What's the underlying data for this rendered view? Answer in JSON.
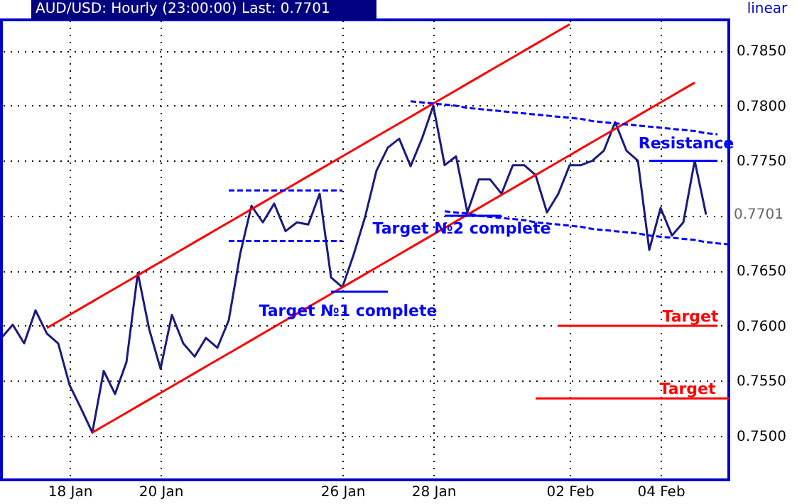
{
  "chart_data": {
    "type": "line",
    "title": "AUD/USD: Hourly (23:00:00) Last: 0.7701",
    "categories": [
      null,
      null,
      null,
      null,
      null,
      null,
      "18 Jan",
      null,
      null,
      null,
      null,
      null,
      null,
      null,
      "20 Jan",
      null,
      null,
      null,
      null,
      null,
      null,
      null,
      null,
      null,
      null,
      null,
      null,
      null,
      null,
      null,
      "26 Jan",
      null,
      null,
      null,
      null,
      null,
      null,
      null,
      "28 Jan",
      null,
      null,
      null,
      null,
      null,
      null,
      null,
      null,
      null,
      null,
      null,
      "02 Feb",
      null,
      null,
      null,
      null,
      null,
      null,
      null,
      "04 Feb",
      null,
      null,
      null,
      null,
      null,
      null
    ],
    "series": [
      {
        "color": "#1a1a80",
        "values": [
          0.7589,
          0.7601,
          0.7584,
          0.7614,
          0.7593,
          0.7584,
          0.7546,
          0.7525,
          0.7503,
          0.7559,
          0.7538,
          0.7567,
          0.7648,
          0.7597,
          0.7561,
          0.761,
          0.7584,
          0.7572,
          0.7589,
          0.758,
          0.7605,
          0.7665,
          0.7709,
          0.7694,
          0.7711,
          0.7686,
          0.7694,
          0.7692,
          0.772,
          0.7644,
          0.7635,
          0.7665,
          0.7699,
          0.7741,
          0.7762,
          0.777,
          0.7745,
          0.777,
          0.78,
          0.7746,
          0.7754,
          0.7703,
          0.7733,
          0.7733,
          0.772,
          0.7746,
          0.7746,
          0.7737,
          0.7703,
          0.772,
          0.7746,
          0.7746,
          0.775,
          0.7759,
          0.7785,
          0.7759,
          0.775,
          0.7669,
          0.7707,
          0.7682,
          0.7694,
          0.775,
          0.7701,
          null,
          null
        ]
      },
      {
        "type": "line",
        "color": "#ff0000",
        "values": [
          null,
          null,
          null,
          null,
          0.7598,
          0.7604,
          0.761,
          0.7616,
          0.7622,
          0.7628,
          0.7634,
          0.764,
          0.7646,
          0.7652,
          0.7658,
          0.7664,
          0.767,
          0.7676,
          0.7682,
          0.7688,
          0.7694,
          0.77,
          0.7706,
          0.7712,
          0.7718,
          0.7724,
          0.773,
          0.7736,
          0.7742,
          0.7748,
          0.7754,
          0.776,
          0.7766,
          0.7772,
          0.7778,
          0.7784,
          0.779,
          0.7796,
          0.7802,
          0.7808,
          0.7814,
          0.782,
          0.7826,
          0.7832,
          0.7838,
          0.7844,
          0.785,
          0.7856,
          0.7862,
          0.7868,
          0.7874,
          null,
          null,
          null,
          null,
          null,
          null,
          null,
          null,
          null,
          null,
          null,
          null,
          null,
          null
        ]
      },
      {
        "type": "line",
        "color": "#ff0000",
        "values": [
          null,
          null,
          null,
          null,
          null,
          null,
          null,
          null,
          0.7503,
          0.7509,
          0.7515,
          0.7521,
          0.7527,
          0.7533,
          0.7539,
          0.7545,
          0.7551,
          0.7557,
          0.7563,
          0.7569,
          0.7575,
          0.7581,
          0.7587,
          0.7593,
          0.7599,
          0.7605,
          0.7611,
          0.7617,
          0.7623,
          0.7629,
          0.7635,
          0.7641,
          0.7647,
          0.7653,
          0.7659,
          0.7665,
          0.7671,
          0.7677,
          0.7683,
          0.7689,
          0.7695,
          0.7701,
          0.7707,
          0.7713,
          0.7719,
          0.7725,
          0.7731,
          0.7737,
          0.7743,
          0.7749,
          0.7755,
          0.7761,
          0.7767,
          0.7773,
          0.7779,
          0.7785,
          0.7791,
          0.7797,
          0.7803,
          0.7809,
          0.7815,
          0.7821,
          null,
          null,
          null
        ]
      },
      {
        "type": "line",
        "color": "#0000ff",
        "line_style": "dashed",
        "values": [
          null,
          null,
          null,
          null,
          null,
          null,
          null,
          null,
          null,
          null,
          null,
          null,
          null,
          null,
          null,
          null,
          null,
          null,
          null,
          null,
          null,
          null,
          null,
          null,
          null,
          null,
          null,
          null,
          null,
          null,
          null,
          null,
          null,
          null,
          null,
          null,
          0.7804,
          0.7803,
          0.7802,
          0.7801,
          0.78,
          0.7798,
          0.7797,
          0.7796,
          0.7795,
          0.7794,
          0.7793,
          0.7792,
          0.7791,
          0.779,
          0.7789,
          0.7788,
          0.7786,
          0.7785,
          0.7784,
          0.7783,
          0.7782,
          0.7781,
          0.778,
          0.7779,
          0.7778,
          0.7777,
          0.7775,
          0.7774,
          null
        ]
      },
      {
        "type": "line",
        "color": "#0000ff",
        "line_style": "dashed",
        "values": [
          null,
          null,
          null,
          null,
          null,
          null,
          null,
          null,
          null,
          null,
          null,
          null,
          null,
          null,
          null,
          null,
          null,
          null,
          null,
          null,
          null,
          null,
          null,
          null,
          null,
          null,
          null,
          null,
          null,
          null,
          null,
          null,
          null,
          null,
          null,
          null,
          null,
          null,
          null,
          0.7704,
          0.7703,
          0.7702,
          0.77,
          0.7699,
          0.7698,
          0.7697,
          0.7696,
          0.7694,
          0.7693,
          0.7692,
          0.7691,
          0.769,
          0.7688,
          0.7687,
          0.7686,
          0.7685,
          0.7684,
          0.7682,
          0.7681,
          0.768,
          0.7679,
          0.7678,
          0.7676,
          0.7675,
          0.7674
        ]
      },
      {
        "type": "line",
        "color": "#0000ff",
        "line_style": "dashed",
        "values": [
          null,
          null,
          null,
          null,
          null,
          null,
          null,
          null,
          null,
          null,
          null,
          null,
          null,
          null,
          null,
          null,
          null,
          null,
          null,
          null,
          0.7723,
          0.7723,
          0.7723,
          0.7723,
          0.7723,
          0.7723,
          0.7723,
          0.7723,
          0.7723,
          0.7723,
          0.7723,
          null,
          null,
          null,
          null,
          null,
          null,
          null,
          null,
          null,
          null,
          null,
          null,
          null,
          null,
          null,
          null,
          null,
          null,
          null,
          null,
          null,
          null,
          null,
          null,
          null,
          null,
          null,
          null,
          null,
          null,
          null,
          null,
          null,
          null
        ]
      },
      {
        "type": "line",
        "color": "#0000ff",
        "line_style": "dashed",
        "values": [
          null,
          null,
          null,
          null,
          null,
          null,
          null,
          null,
          null,
          null,
          null,
          null,
          null,
          null,
          null,
          null,
          null,
          null,
          null,
          null,
          0.7677,
          0.7677,
          0.7677,
          0.7677,
          0.7677,
          0.7677,
          0.7677,
          0.7677,
          0.7677,
          0.7677,
          0.7677,
          null,
          null,
          null,
          null,
          null,
          null,
          null,
          null,
          null,
          null,
          null,
          null,
          null,
          null,
          null,
          null,
          null,
          null,
          null,
          null,
          null,
          null,
          null,
          null,
          null,
          null,
          null,
          null,
          null,
          null,
          null,
          null,
          null,
          null
        ]
      },
      {
        "type": "line",
        "color": "#0000ff",
        "values": [
          null,
          null,
          null,
          null,
          null,
          null,
          null,
          null,
          null,
          null,
          null,
          null,
          null,
          null,
          null,
          null,
          null,
          null,
          null,
          null,
          null,
          null,
          null,
          null,
          null,
          null,
          null,
          null,
          null,
          0.7631,
          0.7631,
          0.7631,
          0.7631,
          0.7631,
          0.7631,
          null,
          null,
          null,
          null,
          null,
          null,
          null,
          null,
          null,
          null,
          null,
          null,
          null,
          null,
          null,
          null,
          null,
          null,
          null,
          null,
          null,
          null,
          null,
          null,
          null,
          null,
          null,
          null,
          null,
          null
        ]
      },
      {
        "type": "line",
        "color": "#0000ff",
        "values": [
          null,
          null,
          null,
          null,
          null,
          null,
          null,
          null,
          null,
          null,
          null,
          null,
          null,
          null,
          null,
          null,
          null,
          null,
          null,
          null,
          null,
          null,
          null,
          null,
          null,
          null,
          null,
          null,
          null,
          null,
          null,
          null,
          null,
          null,
          null,
          null,
          null,
          null,
          null,
          0.77,
          0.77,
          0.77,
          0.77,
          0.77,
          0.77,
          null,
          null,
          null,
          null,
          null,
          null,
          null,
          null,
          null,
          null,
          null,
          null,
          null,
          null,
          null,
          null,
          null,
          null,
          null,
          null
        ]
      },
      {
        "type": "line",
        "color": "#0000ff",
        "values": [
          null,
          null,
          null,
          null,
          null,
          null,
          null,
          null,
          null,
          null,
          null,
          null,
          null,
          null,
          null,
          null,
          null,
          null,
          null,
          null,
          null,
          null,
          null,
          null,
          null,
          null,
          null,
          null,
          null,
          null,
          null,
          null,
          null,
          null,
          null,
          null,
          null,
          null,
          null,
          null,
          null,
          null,
          null,
          null,
          null,
          null,
          null,
          null,
          null,
          null,
          null,
          null,
          null,
          null,
          null,
          null,
          null,
          0.775,
          0.775,
          0.775,
          0.775,
          0.775,
          0.775,
          0.775,
          null
        ]
      },
      {
        "type": "line",
        "color": "#ff0000",
        "values": [
          null,
          null,
          null,
          null,
          null,
          null,
          null,
          null,
          null,
          null,
          null,
          null,
          null,
          null,
          null,
          null,
          null,
          null,
          null,
          null,
          null,
          null,
          null,
          null,
          null,
          null,
          null,
          null,
          null,
          null,
          null,
          null,
          null,
          null,
          null,
          null,
          null,
          null,
          null,
          null,
          null,
          null,
          null,
          null,
          null,
          null,
          null,
          null,
          null,
          0.76,
          0.76,
          0.76,
          0.76,
          0.76,
          0.76,
          0.76,
          0.76,
          0.76,
          0.76,
          0.76,
          0.76,
          0.76,
          0.76,
          0.76,
          null
        ]
      },
      {
        "type": "line",
        "color": "#ff0000",
        "values": [
          null,
          null,
          null,
          null,
          null,
          null,
          null,
          null,
          null,
          null,
          null,
          null,
          null,
          null,
          null,
          null,
          null,
          null,
          null,
          null,
          null,
          null,
          null,
          null,
          null,
          null,
          null,
          null,
          null,
          null,
          null,
          null,
          null,
          null,
          null,
          null,
          null,
          null,
          null,
          null,
          null,
          null,
          null,
          null,
          null,
          null,
          null,
          0.7534,
          0.7534,
          0.7534,
          0.7534,
          0.7534,
          0.7534,
          0.7534,
          0.7534,
          0.7534,
          0.7534,
          0.7534,
          0.7534,
          0.7534,
          0.7534,
          0.7534,
          0.7534,
          0.7534,
          0.7534
        ]
      }
    ],
    "annotations": [
      "linear",
      "0.7701",
      "Target №1 complete",
      "Target №2 complete",
      "Resistance",
      "Target",
      "Target"
    ],
    "ylim": [
      0.746,
      0.7878
    ],
    "yticks": [
      {
        "value": 0.75,
        "label": "0.7500"
      },
      {
        "value": 0.755,
        "label": "0.7550"
      },
      {
        "value": 0.76,
        "label": "0.7600"
      },
      {
        "value": 0.765,
        "label": "0.7650"
      },
      {
        "value": 0.77,
        "label": null
      },
      {
        "value": 0.775,
        "label": "0.7750"
      },
      {
        "value": 0.78,
        "label": "0.7800"
      },
      {
        "value": 0.785,
        "label": "0.7850"
      }
    ],
    "grid": true
  }
}
